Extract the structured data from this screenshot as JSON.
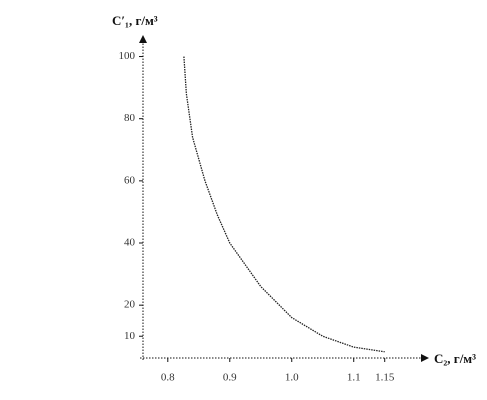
{
  "chart_data": {
    "type": "line",
    "x_label": "C₂, г/м³",
    "y_label": "C′₁, г/м³",
    "x": [
      0.826,
      0.83,
      0.84,
      0.86,
      0.88,
      0.9,
      0.95,
      1.0,
      1.05,
      1.1,
      1.15
    ],
    "series": [
      {
        "color": "#222222",
        "values": [
          100,
          88,
          74,
          60,
          49,
          40,
          26,
          16,
          10,
          6.5,
          5
        ]
      }
    ],
    "xlim": [
      0.76,
      1.215
    ],
    "ylim": [
      3,
      105
    ],
    "xticks": [
      0.8,
      0.9,
      {
        "value": 1,
        "label": "1.0"
      },
      1.1,
      1.15
    ],
    "yticks": [
      10,
      20,
      40,
      60,
      80,
      100
    ]
  }
}
